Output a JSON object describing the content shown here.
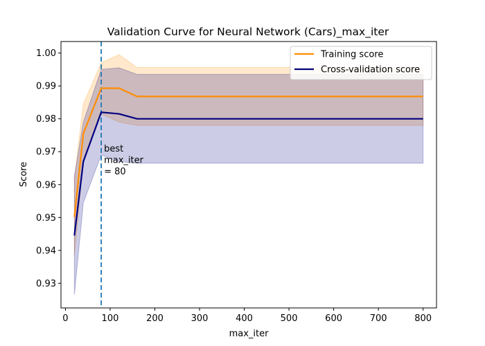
{
  "chart_data": {
    "type": "line",
    "title": "Validation Curve for Neural Network (Cars)_max_iter",
    "xlabel": "max_iter",
    "ylabel": "Score",
    "xlim": [
      -10,
      830
    ],
    "ylim": [
      0.9225,
      1.0035
    ],
    "xticks": [
      0,
      100,
      200,
      300,
      400,
      500,
      600,
      700,
      800
    ],
    "yticks": [
      0.93,
      0.94,
      0.95,
      0.96,
      0.97,
      0.98,
      0.99,
      1.0
    ],
    "ytick_labels": [
      "0.93",
      "0.94",
      "0.95",
      "0.96",
      "0.97",
      "0.98",
      "0.99",
      "1.00"
    ],
    "grid": false,
    "legend_position": "top-right",
    "x": [
      20,
      40,
      80,
      120,
      160,
      200,
      400,
      600,
      800
    ],
    "series": [
      {
        "name": "Training score",
        "color": "#ff8c00",
        "values": [
          0.9502,
          0.9755,
          0.9893,
          0.9893,
          0.9868,
          0.9868,
          0.9868,
          0.9868,
          0.9868
        ],
        "band_lower": [
          0.9385,
          0.967,
          0.9815,
          0.979,
          0.978,
          0.978,
          0.978,
          0.978,
          0.978
        ],
        "band_upper": [
          0.962,
          0.9845,
          0.997,
          0.9995,
          0.9956,
          0.9956,
          0.9956,
          0.9956,
          0.9956
        ]
      },
      {
        "name": "Cross-validation score",
        "color": "#000080",
        "values": [
          0.9445,
          0.967,
          0.982,
          0.9815,
          0.98,
          0.98,
          0.98,
          0.98,
          0.98
        ],
        "band_lower": [
          0.9265,
          0.9545,
          0.969,
          0.967,
          0.9665,
          0.9665,
          0.9665,
          0.9665,
          0.9665
        ],
        "band_upper": [
          0.9625,
          0.979,
          0.995,
          0.9955,
          0.9935,
          0.9935,
          0.9935,
          0.9935,
          0.9935
        ]
      }
    ],
    "vline": {
      "x": 80,
      "color": "#1f77b4"
    },
    "annotation": {
      "x": 80,
      "lines": [
        "best",
        "max_iter",
        "= 80"
      ]
    }
  }
}
